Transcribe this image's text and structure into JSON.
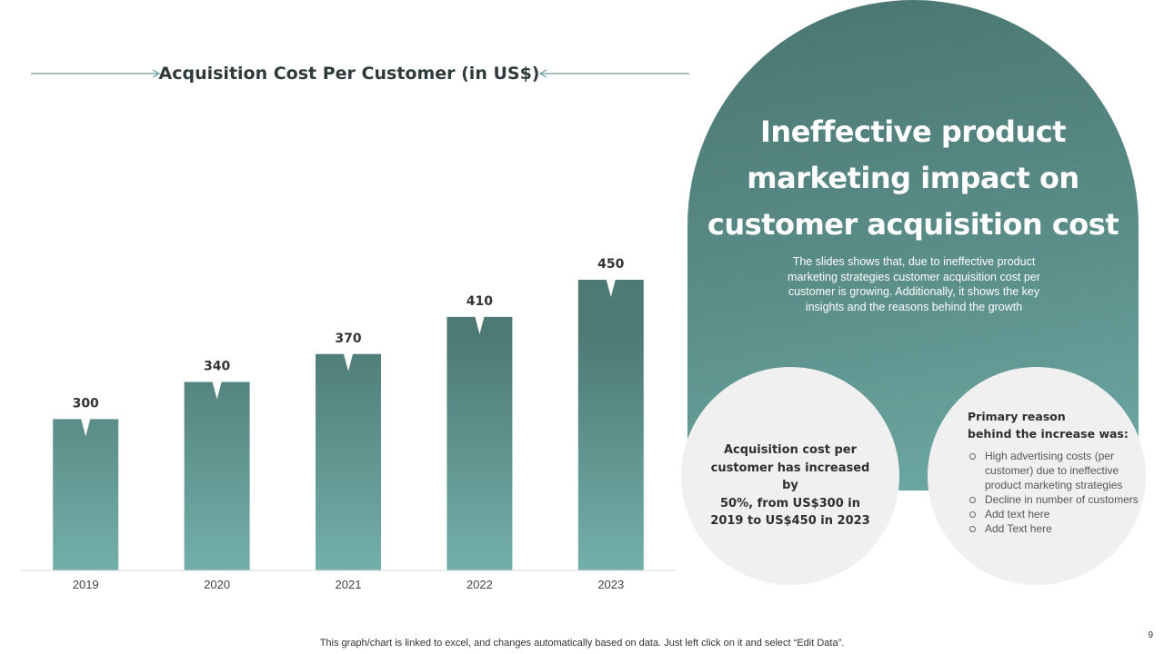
{
  "chart_data": {
    "type": "bar",
    "title": "Acquisition Cost Per Customer (in US$)",
    "categories": [
      "2019",
      "2020",
      "2021",
      "2022",
      "2023"
    ],
    "values": [
      300,
      340,
      370,
      410,
      450
    ],
    "xlabel": "",
    "ylabel": "",
    "ylim": [
      0,
      480
    ],
    "grid": false,
    "colors": {
      "bar_top": "#4e7a76",
      "bar_bottom": "#73afa9",
      "arrow": "#6e9e9a",
      "axis": "#d9d9d9"
    }
  },
  "panel": {
    "headline_lines": [
      "Ineffective product",
      "marketing impact on",
      "customer acquisition cost"
    ],
    "description_lines": [
      "The slides shows that, due to ineffective  product",
      "marketing strategies customer acquisition cost per",
      "customer is growing. Additionally, it shows the key",
      "insights and the reasons behind the growth"
    ]
  },
  "insight_left": {
    "lines": [
      "Acquisition cost per",
      "customer has increased by",
      "50%, from US$300 in",
      "2019 to US$450 in 2023"
    ]
  },
  "insight_right": {
    "heading_lines": [
      "Primary reason",
      "behind the increase was:"
    ],
    "items": [
      "High advertising  costs (per customer) due to ineffective product marketing strategies",
      "Decline in number of customers",
      "Add text here",
      "Add Text here"
    ]
  },
  "footer": {
    "note": "This graph/chart is linked to excel,  and changes automatically based on data. Just left click on it and select “Edit Data”.",
    "page_number": "9"
  }
}
